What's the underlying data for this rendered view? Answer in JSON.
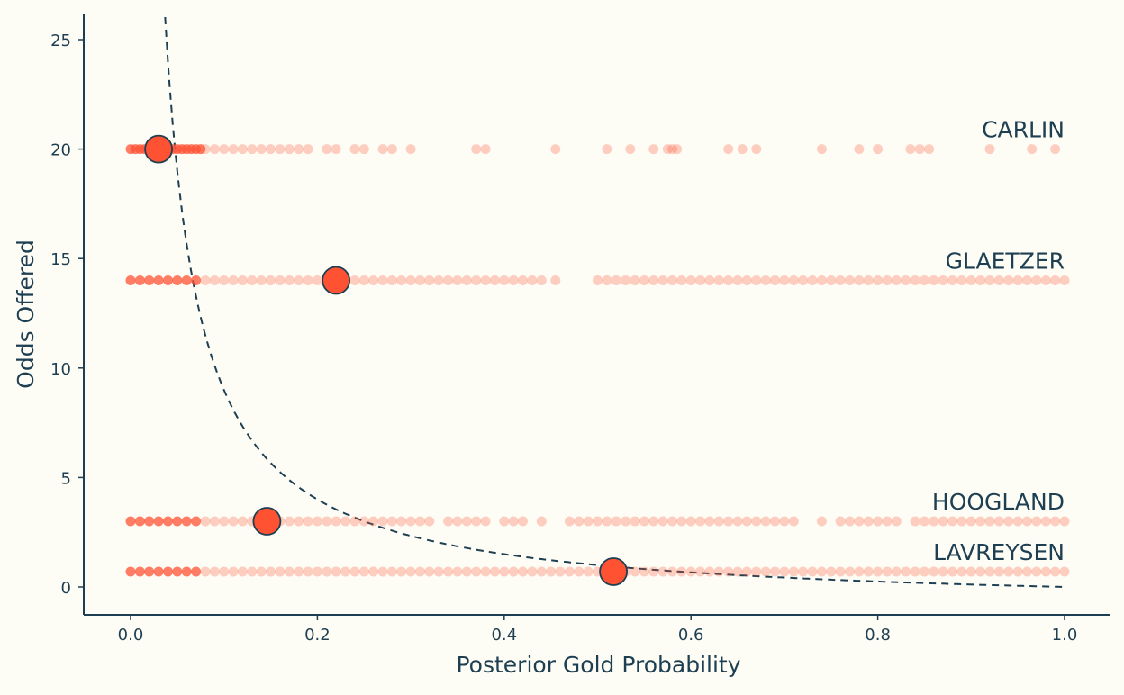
{
  "chart_data": {
    "type": "scatter",
    "title": "",
    "xlabel": "Posterior Gold Probability",
    "ylabel": "Odds Offered",
    "xlim": [
      0.0,
      1.0
    ],
    "ylim": [
      0,
      25
    ],
    "x_ticks": [
      "0.0",
      "0.2",
      "0.4",
      "0.6",
      "0.8",
      "1.0"
    ],
    "y_ticks": [
      "0",
      "5",
      "10",
      "15",
      "20",
      "25"
    ],
    "grid": false,
    "legend": "none",
    "colors": {
      "points": "#ff5233",
      "ink": "#1e3f52",
      "background": "#fdfdf6"
    },
    "reference_curve": {
      "description": "break-even odds = 1/p - 1",
      "style": "dashed"
    },
    "riders": [
      {
        "name": "CARLIN",
        "odds": 20,
        "posterior_mean": 0.03,
        "samples": [
          0.0,
          0.005,
          0.01,
          0.015,
          0.02,
          0.025,
          0.03,
          0.035,
          0.04,
          0.045,
          0.05,
          0.055,
          0.06,
          0.065,
          0.07,
          0.075,
          0.08,
          0.09,
          0.1,
          0.11,
          0.12,
          0.13,
          0.14,
          0.15,
          0.16,
          0.17,
          0.18,
          0.19,
          0.21,
          0.22,
          0.24,
          0.25,
          0.27,
          0.28,
          0.3,
          0.37,
          0.38,
          0.455,
          0.51,
          0.535,
          0.56,
          0.575,
          0.58,
          0.585,
          0.64,
          0.655,
          0.67,
          0.74,
          0.78,
          0.8,
          0.835,
          0.845,
          0.855,
          0.92,
          0.965,
          0.99
        ]
      },
      {
        "name": "GLAETZER",
        "odds": 14,
        "posterior_mean": 0.22,
        "samples": [
          0.0,
          0.01,
          0.02,
          0.03,
          0.04,
          0.05,
          0.06,
          0.07,
          0.08,
          0.09,
          0.1,
          0.11,
          0.12,
          0.13,
          0.14,
          0.15,
          0.16,
          0.17,
          0.18,
          0.19,
          0.2,
          0.21,
          0.22,
          0.23,
          0.24,
          0.25,
          0.26,
          0.27,
          0.28,
          0.29,
          0.3,
          0.31,
          0.32,
          0.33,
          0.34,
          0.35,
          0.36,
          0.37,
          0.38,
          0.39,
          0.4,
          0.41,
          0.42,
          0.43,
          0.44,
          0.455,
          0.5,
          0.51,
          0.52,
          0.53,
          0.54,
          0.55,
          0.56,
          0.57,
          0.58,
          0.59,
          0.6,
          0.61,
          0.62,
          0.63,
          0.64,
          0.65,
          0.66,
          0.67,
          0.68,
          0.69,
          0.7,
          0.71,
          0.72,
          0.73,
          0.74,
          0.75,
          0.76,
          0.77,
          0.78,
          0.79,
          0.8,
          0.81,
          0.82,
          0.83,
          0.84,
          0.85,
          0.86,
          0.87,
          0.88,
          0.89,
          0.9,
          0.91,
          0.92,
          0.93,
          0.94,
          0.95,
          0.96,
          0.97,
          0.98,
          0.99,
          1.0
        ]
      },
      {
        "name": "HOOGLAND",
        "odds": 3,
        "posterior_mean": 0.146,
        "samples": [
          0.0,
          0.01,
          0.02,
          0.03,
          0.04,
          0.05,
          0.06,
          0.07,
          0.08,
          0.09,
          0.1,
          0.11,
          0.12,
          0.13,
          0.14,
          0.15,
          0.16,
          0.17,
          0.18,
          0.19,
          0.2,
          0.21,
          0.22,
          0.23,
          0.24,
          0.25,
          0.26,
          0.27,
          0.28,
          0.29,
          0.3,
          0.31,
          0.32,
          0.34,
          0.35,
          0.36,
          0.37,
          0.38,
          0.4,
          0.41,
          0.42,
          0.44,
          0.47,
          0.48,
          0.49,
          0.5,
          0.51,
          0.52,
          0.53,
          0.54,
          0.55,
          0.56,
          0.57,
          0.58,
          0.59,
          0.6,
          0.61,
          0.62,
          0.63,
          0.64,
          0.65,
          0.66,
          0.67,
          0.68,
          0.69,
          0.7,
          0.71,
          0.74,
          0.76,
          0.77,
          0.78,
          0.79,
          0.8,
          0.81,
          0.82,
          0.84,
          0.85,
          0.86,
          0.87,
          0.88,
          0.89,
          0.9,
          0.91,
          0.92,
          0.93,
          0.94,
          0.95,
          0.96,
          0.97,
          0.98,
          0.99,
          1.0
        ]
      },
      {
        "name": "LAVREYSEN",
        "odds": 0.7,
        "posterior_mean": 0.517,
        "samples": [
          0.0,
          0.01,
          0.02,
          0.03,
          0.04,
          0.05,
          0.06,
          0.07,
          0.08,
          0.09,
          0.1,
          0.11,
          0.12,
          0.13,
          0.14,
          0.15,
          0.16,
          0.17,
          0.18,
          0.19,
          0.2,
          0.21,
          0.22,
          0.23,
          0.24,
          0.25,
          0.26,
          0.27,
          0.28,
          0.29,
          0.3,
          0.31,
          0.32,
          0.33,
          0.34,
          0.35,
          0.36,
          0.37,
          0.38,
          0.39,
          0.4,
          0.41,
          0.42,
          0.43,
          0.44,
          0.45,
          0.46,
          0.47,
          0.48,
          0.49,
          0.5,
          0.51,
          0.52,
          0.53,
          0.54,
          0.55,
          0.56,
          0.57,
          0.58,
          0.59,
          0.6,
          0.61,
          0.62,
          0.63,
          0.64,
          0.65,
          0.66,
          0.67,
          0.68,
          0.69,
          0.7,
          0.71,
          0.72,
          0.73,
          0.74,
          0.75,
          0.76,
          0.77,
          0.78,
          0.79,
          0.8,
          0.81,
          0.82,
          0.83,
          0.84,
          0.85,
          0.86,
          0.87,
          0.88,
          0.89,
          0.9,
          0.91,
          0.92,
          0.93,
          0.94,
          0.95,
          0.96,
          0.97,
          0.98,
          0.99,
          1.0
        ]
      }
    ]
  }
}
